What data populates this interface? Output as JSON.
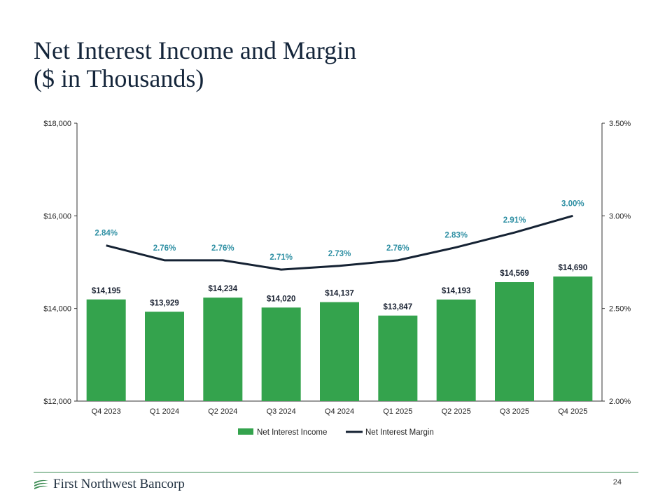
{
  "slide": {
    "title_line1": "Net Interest Income and Margin",
    "title_line2": "($ in Thousands)",
    "company": "First Northwest Bancorp",
    "page_number": "24"
  },
  "colors": {
    "bar": "#34a34d",
    "line": "#152233",
    "margin_label": "#2e8fa3",
    "accent_line": "#3b8a52"
  },
  "chart_data": {
    "type": "bar",
    "categories": [
      "Q4 2023",
      "Q1 2024",
      "Q2 2024",
      "Q3 2024",
      "Q4 2024",
      "Q1 2025",
      "Q2 2025",
      "Q3 2025",
      "Q4 2025"
    ],
    "series": [
      {
        "name": "Net Interest Income",
        "type": "bar",
        "axis": "left",
        "values": [
          14195,
          13929,
          14234,
          14020,
          14137,
          13847,
          14193,
          14569,
          14690
        ],
        "labels": [
          "$14,195",
          "$13,929",
          "$14,234",
          "$14,020",
          "$14,137",
          "$13,847",
          "$14,193",
          "$14,569",
          "$14,690"
        ]
      },
      {
        "name": "Net Interest Margin",
        "type": "line",
        "axis": "right",
        "values": [
          2.84,
          2.76,
          2.76,
          2.71,
          2.73,
          2.76,
          2.83,
          2.91,
          3.0
        ],
        "labels": [
          "2.84%",
          "2.76%",
          "2.76%",
          "2.71%",
          "2.73%",
          "2.76%",
          "2.83%",
          "2.91%",
          "3.00%"
        ]
      }
    ],
    "y_left": {
      "min": 12000,
      "max": 18000,
      "ticks": [
        12000,
        14000,
        16000,
        18000
      ],
      "tick_labels": [
        "$12,000",
        "$14,000",
        "$16,000",
        "$18,000"
      ]
    },
    "y_right": {
      "min": 2.0,
      "max": 3.5,
      "ticks": [
        2.0,
        2.5,
        3.0,
        3.5
      ],
      "tick_labels": [
        "2.00%",
        "2.50%",
        "3.00%",
        "3.50%"
      ]
    },
    "legend": [
      "Net Interest Income",
      "Net Interest Margin"
    ],
    "legend_position": "bottom",
    "grid": false
  }
}
